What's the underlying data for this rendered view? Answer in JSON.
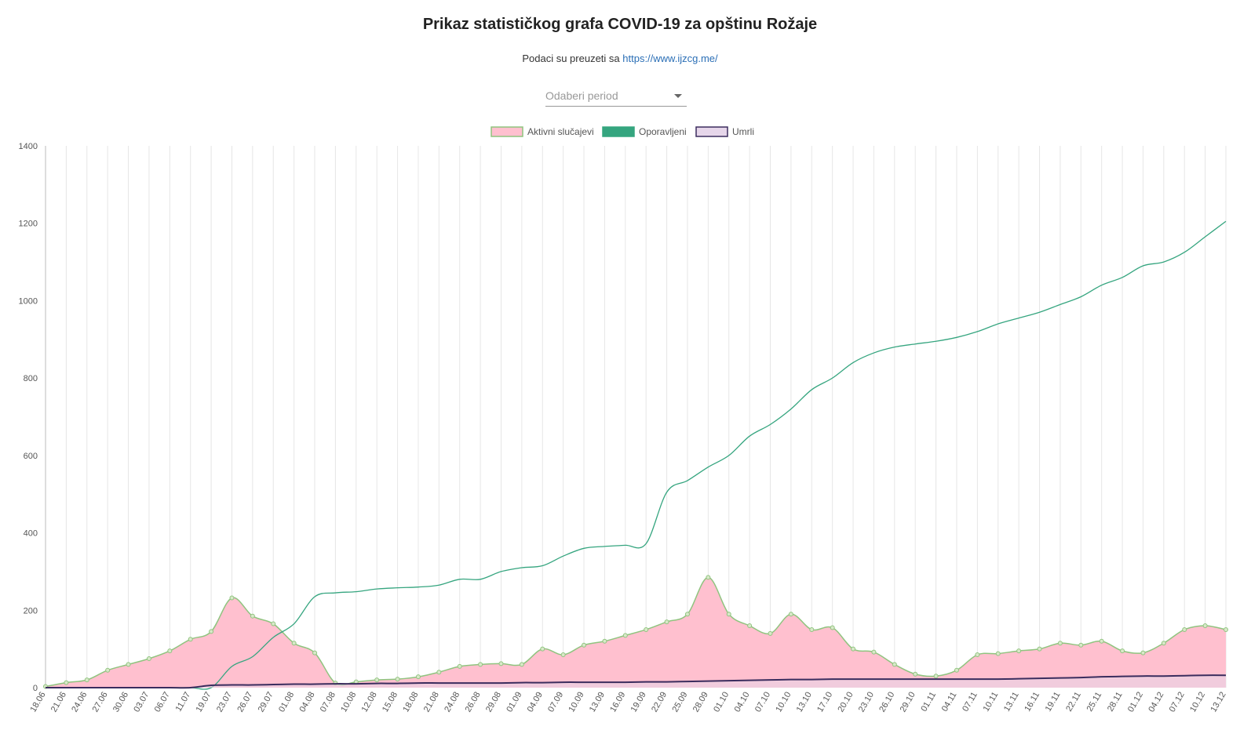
{
  "header": {
    "title": "Prikaz statističkog grafa COVID-19 za opštinu Rožaje",
    "source_prefix": "Podaci su preuzeti sa ",
    "source_link": "https://www.ijzcg.me/"
  },
  "period_select": {
    "placeholder": "Odaberi period"
  },
  "colors": {
    "active_fill": "#ffc0cf",
    "active_line": "#8fc47f",
    "recovered": "#35a57f",
    "deaths_fill": "#e6d6ea",
    "deaths_line": "#3b2d5e",
    "grid": "#e6e6e6"
  },
  "chart_data": {
    "type": "line",
    "title": "",
    "xlabel": "",
    "ylabel": "",
    "ylim": [
      0,
      1400
    ],
    "yticks": [
      0,
      200,
      400,
      600,
      800,
      1000,
      1200,
      1400
    ],
    "legend_position": "top-center",
    "grid": "vertical",
    "x_tick_labels": [
      "18.06",
      "21.06",
      "24.06",
      "27.06",
      "30.06",
      "03.07",
      "06.07",
      "11.07",
      "19.07",
      "23.07",
      "26.07",
      "29.07",
      "01.08",
      "04.08",
      "07.08",
      "10.08",
      "12.08",
      "15.08",
      "18.08",
      "21.08",
      "24.08",
      "26.08",
      "29.08",
      "01.09",
      "04.09",
      "07.09",
      "10.09",
      "13.09",
      "16.09",
      "19.09",
      "22.09",
      "25.09",
      "28.09",
      "01.10",
      "04.10",
      "07.10",
      "10.10",
      "13.10",
      "17.10",
      "20.10",
      "23.10",
      "26.10",
      "29.10",
      "01.11",
      "04.11",
      "07.11",
      "10.11",
      "13.11",
      "16.11",
      "19.11",
      "22.11",
      "25.11",
      "28.11",
      "01.12",
      "04.12",
      "07.12",
      "10.12",
      "13.12"
    ],
    "series": [
      {
        "name": "Aktivni slučajevi",
        "kind": "area",
        "values": [
          3,
          13,
          20,
          45,
          60,
          75,
          95,
          125,
          145,
          232,
          185,
          165,
          115,
          90,
          12,
          15,
          20,
          22,
          28,
          40,
          55,
          60,
          62,
          60,
          100,
          85,
          110,
          120,
          135,
          150,
          170,
          190,
          285,
          190,
          160,
          140,
          190,
          150,
          155,
          100,
          92,
          60,
          35,
          30,
          45,
          85,
          88,
          95,
          100,
          115,
          110,
          120,
          95,
          90,
          115,
          150,
          160,
          150
        ]
      },
      {
        "name": "Oporavljeni",
        "kind": "line",
        "values": [
          0,
          0,
          0,
          0,
          0,
          0,
          0,
          0,
          0,
          55,
          80,
          130,
          165,
          235,
          245,
          248,
          255,
          258,
          260,
          265,
          280,
          280,
          300,
          310,
          315,
          340,
          360,
          365,
          368,
          372,
          505,
          535,
          570,
          600,
          650,
          680,
          720,
          770,
          800,
          840,
          865,
          880,
          888,
          895,
          905,
          920,
          940,
          955,
          970,
          990,
          1010,
          1040,
          1060,
          1090,
          1100,
          1125,
          1165,
          1205
        ]
      },
      {
        "name": "Umrli",
        "kind": "area",
        "values": [
          0,
          0,
          0,
          0,
          0,
          0,
          0,
          0,
          6,
          7,
          7,
          8,
          9,
          9,
          10,
          10,
          11,
          11,
          12,
          12,
          12,
          12,
          12,
          13,
          13,
          14,
          14,
          14,
          14,
          15,
          15,
          16,
          17,
          18,
          19,
          20,
          21,
          21,
          22,
          22,
          22,
          22,
          22,
          22,
          22,
          22,
          22,
          23,
          24,
          25,
          26,
          28,
          29,
          30,
          30,
          31,
          32,
          32
        ]
      }
    ]
  }
}
